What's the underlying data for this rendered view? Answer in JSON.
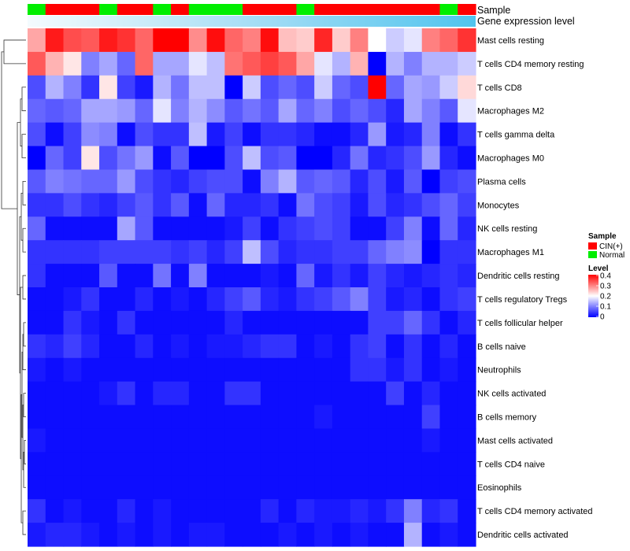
{
  "chart_data": {
    "type": "heatmap",
    "annotation_rows": [
      "Sample",
      "Gene expression level"
    ],
    "sample_groups": [
      "Normal",
      "CIN(+)",
      "CIN(+)",
      "CIN(+)",
      "Normal",
      "CIN(+)",
      "CIN(+)",
      "Normal",
      "CIN(+)",
      "Normal",
      "Normal",
      "Normal",
      "CIN(+)",
      "CIN(+)",
      "CIN(+)",
      "Normal",
      "CIN(+)",
      "CIN(+)",
      "CIN(+)",
      "CIN(+)",
      "CIN(+)",
      "CIN(+)",
      "CIN(+)",
      "Normal",
      "CIN(+)"
    ],
    "row_labels": [
      "Mast cells resting",
      "T cells CD4 memory resting",
      "T cells CD8",
      "Macrophages M2",
      "T cells gamma delta",
      "Macrophages M0",
      "Plasma cells",
      "Monocytes",
      "NK cells resting",
      "Macrophages M1",
      "Dendritic cells resting",
      "T cells regulatory  Tregs",
      "T cells follicular helper",
      "B cells naive",
      "Neutrophils",
      "NK cells activated",
      "B cells memory",
      "Mast cells activated",
      "T cells CD4 naive",
      "Eosinophils",
      "T cells CD4 memory activated",
      "Dendritic cells activated"
    ],
    "values": [
      [
        0.27,
        0.38,
        0.34,
        0.33,
        0.38,
        0.36,
        0.32,
        0.4,
        0.4,
        0.29,
        0.39,
        0.32,
        0.3,
        0.39,
        0.25,
        0.24,
        0.37,
        0.24,
        0.3,
        0.2,
        0.16,
        0.18,
        0.3,
        0.32,
        0.36
      ],
      [
        0.33,
        0.26,
        0.22,
        0.1,
        0.13,
        0.08,
        0.32,
        0.13,
        0.13,
        0.18,
        0.15,
        0.31,
        0.33,
        0.35,
        0.33,
        0.27,
        0.18,
        0.14,
        0.26,
        0,
        0.14,
        0.1,
        0.14,
        0.14,
        0.16
      ],
      [
        0.06,
        0.14,
        0.1,
        0.04,
        0.22,
        0.05,
        0.02,
        0.14,
        0.09,
        0.15,
        0.15,
        0,
        0.16,
        0.06,
        0.08,
        0.06,
        0.16,
        0.08,
        0.06,
        0.4,
        0.08,
        0.13,
        0.12,
        0.16,
        0.23
      ],
      [
        0.08,
        0.07,
        0.08,
        0.13,
        0.13,
        0.12,
        0.08,
        0.18,
        0.1,
        0.14,
        0.11,
        0.07,
        0.09,
        0.07,
        0.13,
        0.08,
        0.1,
        0.06,
        0.08,
        0.06,
        0.03,
        0.13,
        0.1,
        0.07,
        0.18
      ],
      [
        0.06,
        0.01,
        0.05,
        0.11,
        0.1,
        0.01,
        0.06,
        0.04,
        0.04,
        0.15,
        0.02,
        0.05,
        0.01,
        0.04,
        0.04,
        0.03,
        0.01,
        0.01,
        0.03,
        0.12,
        0.02,
        0.03,
        0.1,
        0.01,
        0.04
      ],
      [
        0,
        0.08,
        0.05,
        0.22,
        0.06,
        0.09,
        0.12,
        0.01,
        0.07,
        0,
        0,
        0.06,
        0.15,
        0.06,
        0.07,
        0,
        0,
        0.03,
        0.09,
        0.03,
        0.04,
        0.06,
        0.12,
        0.03,
        0.01
      ],
      [
        0.07,
        0.1,
        0.09,
        0.08,
        0.08,
        0.12,
        0.06,
        0.04,
        0.03,
        0.05,
        0.06,
        0.06,
        0.01,
        0.1,
        0.14,
        0.07,
        0.08,
        0.07,
        0.03,
        0.06,
        0.02,
        0.07,
        0,
        0.05,
        0.06
      ],
      [
        0.04,
        0.04,
        0.06,
        0.04,
        0.03,
        0.05,
        0.07,
        0.04,
        0.07,
        0.01,
        0.08,
        0.03,
        0.03,
        0.04,
        0.01,
        0.09,
        0.06,
        0.05,
        0.02,
        0.06,
        0.03,
        0.04,
        0.06,
        0.08,
        0.05
      ],
      [
        0.08,
        0.01,
        0.01,
        0.01,
        0.01,
        0.13,
        0.07,
        0.01,
        0.01,
        0.01,
        0.01,
        0.02,
        0.05,
        0.01,
        0.04,
        0.05,
        0.06,
        0.05,
        0.01,
        0.01,
        0.05,
        0.1,
        0.01,
        0.08,
        0.03
      ],
      [
        0.04,
        0.04,
        0.04,
        0.04,
        0.05,
        0.05,
        0.05,
        0.05,
        0.04,
        0.05,
        0.03,
        0.05,
        0.15,
        0.06,
        0.03,
        0.04,
        0.04,
        0.05,
        0.05,
        0.08,
        0.1,
        0.11,
        0,
        0.04,
        0.04
      ],
      [
        0.04,
        0.01,
        0.01,
        0.01,
        0.07,
        0.01,
        0.01,
        0.09,
        0.01,
        0.1,
        0.01,
        0.01,
        0.01,
        0.02,
        0.01,
        0.08,
        0.02,
        0.04,
        0.02,
        0.05,
        0.03,
        0.02,
        0.03,
        0.04,
        0.03
      ],
      [
        0.01,
        0.01,
        0.02,
        0.04,
        0.01,
        0.01,
        0.03,
        0.01,
        0.02,
        0.01,
        0.03,
        0.05,
        0.07,
        0.03,
        0.02,
        0.04,
        0.05,
        0.07,
        0.1,
        0.05,
        0.02,
        0.03,
        0.01,
        0.04,
        0.05
      ],
      [
        0.01,
        0.01,
        0.04,
        0.02,
        0.01,
        0.04,
        0.01,
        0.01,
        0.01,
        0.01,
        0.01,
        0.03,
        0.01,
        0.01,
        0.01,
        0.01,
        0.01,
        0.01,
        0.01,
        0.05,
        0.05,
        0.08,
        0.04,
        0.01,
        0.03
      ],
      [
        0.04,
        0.03,
        0.05,
        0.03,
        0.01,
        0.01,
        0.03,
        0.01,
        0.02,
        0.01,
        0.02,
        0.02,
        0.03,
        0.04,
        0.04,
        0.01,
        0.02,
        0.01,
        0.04,
        0.05,
        0.01,
        0.04,
        0.01,
        0.03,
        0.01
      ],
      [
        0.02,
        0.01,
        0.02,
        0.01,
        0.01,
        0.01,
        0.01,
        0.01,
        0.01,
        0.01,
        0.01,
        0.01,
        0.01,
        0.01,
        0.01,
        0.01,
        0.01,
        0.01,
        0.04,
        0.04,
        0.02,
        0.04,
        0.01,
        0.02,
        0.01
      ],
      [
        0.01,
        0.01,
        0.01,
        0.01,
        0.02,
        0.04,
        0.01,
        0.03,
        0.03,
        0.01,
        0.01,
        0.04,
        0.04,
        0.01,
        0.01,
        0.01,
        0.01,
        0.01,
        0.01,
        0.01,
        0.05,
        0.01,
        0.03,
        0.01,
        0.01
      ],
      [
        0.01,
        0.01,
        0.01,
        0.01,
        0.01,
        0.01,
        0.01,
        0.01,
        0.01,
        0.01,
        0.01,
        0.01,
        0.01,
        0.01,
        0.01,
        0.01,
        0.02,
        0.01,
        0.01,
        0.01,
        0.01,
        0.01,
        0.05,
        0.01,
        0.01
      ],
      [
        0.02,
        0.01,
        0.01,
        0.01,
        0.01,
        0.01,
        0.01,
        0.01,
        0.01,
        0.01,
        0.01,
        0.01,
        0.01,
        0.01,
        0.01,
        0.01,
        0.01,
        0.01,
        0.01,
        0.01,
        0.01,
        0.01,
        0.02,
        0.01,
        0.01
      ],
      [
        0.01,
        0.01,
        0.01,
        0.01,
        0.01,
        0.01,
        0.01,
        0.01,
        0.01,
        0.01,
        0.01,
        0.01,
        0.01,
        0.01,
        0.01,
        0.01,
        0.01,
        0.01,
        0.01,
        0.01,
        0.01,
        0.01,
        0.01,
        0.01,
        0.01
      ],
      [
        0.01,
        0.01,
        0.01,
        0.01,
        0.01,
        0.01,
        0.01,
        0.01,
        0.01,
        0.01,
        0.01,
        0.01,
        0.01,
        0.01,
        0.01,
        0.01,
        0.01,
        0.01,
        0.01,
        0.01,
        0.01,
        0.01,
        0.01,
        0.01,
        0.01
      ],
      [
        0.04,
        0.01,
        0.02,
        0.01,
        0.01,
        0.03,
        0.01,
        0.02,
        0.01,
        0.01,
        0.01,
        0.01,
        0.01,
        0.03,
        0.01,
        0.03,
        0.02,
        0.02,
        0.03,
        0.02,
        0.04,
        0.1,
        0.03,
        0.04,
        0.01
      ],
      [
        0.02,
        0.03,
        0.03,
        0.02,
        0.01,
        0.02,
        0.01,
        0.02,
        0.01,
        0.02,
        0.02,
        0.01,
        0.01,
        0.01,
        0.02,
        0.01,
        0.02,
        0.01,
        0.02,
        0.01,
        0.01,
        0.14,
        0.01,
        0.02,
        0.01
      ]
    ],
    "legend": {
      "sample_title": "Sample",
      "sample_entries": [
        {
          "label": "CIN(+)",
          "color": "#ff0000"
        },
        {
          "label": "Normal",
          "color": "#00ee00"
        }
      ],
      "level_title": "Level",
      "level_ticks": [
        "0.4",
        "0.3",
        "0.2",
        "0.1",
        "0"
      ],
      "level_range": [
        0,
        0.4
      ],
      "color_low": "#0000ff",
      "color_mid": "#ffffff",
      "color_high": "#ff0000"
    }
  }
}
